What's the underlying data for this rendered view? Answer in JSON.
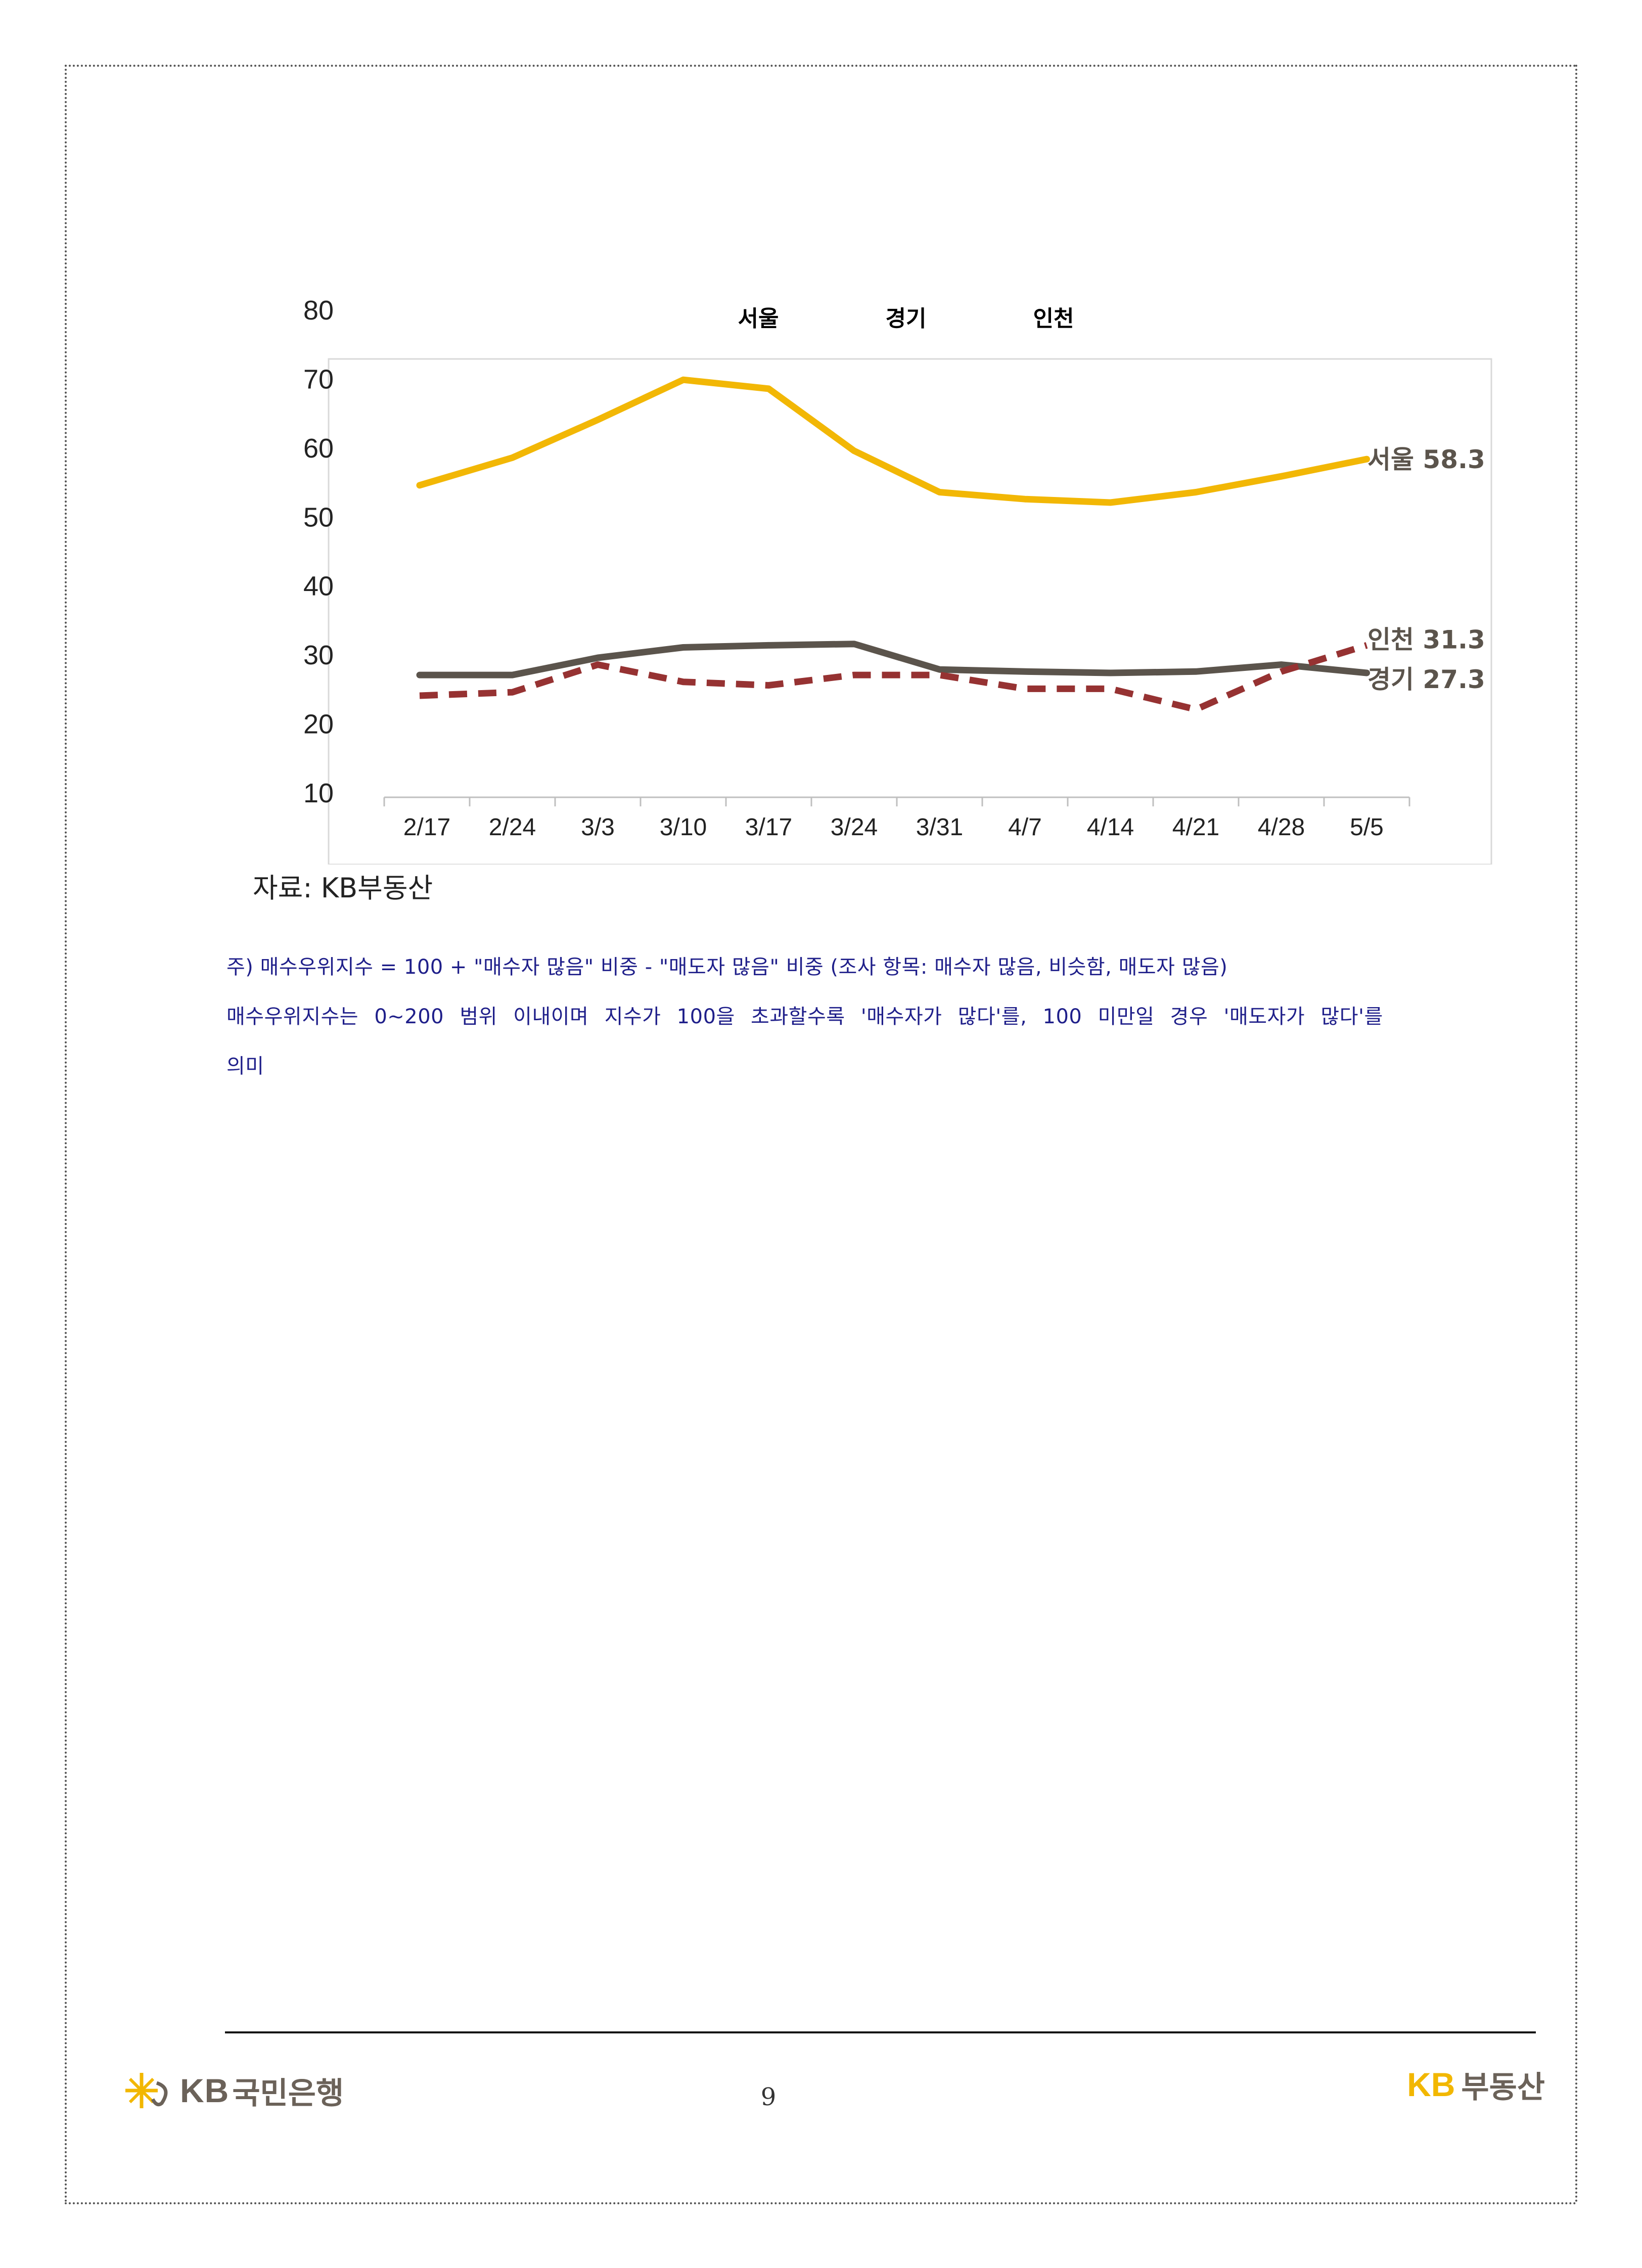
{
  "chart_data": {
    "type": "line",
    "categories": [
      "2/17",
      "2/24",
      "3/3",
      "3/10",
      "3/17",
      "3/24",
      "3/31",
      "4/7",
      "4/14",
      "4/21",
      "4/28",
      "5/5"
    ],
    "ylim": [
      10,
      80
    ],
    "yticks": [
      "80",
      "70",
      "60",
      "50",
      "40",
      "30",
      "20",
      "10"
    ],
    "legend": [
      "서울",
      "경기",
      "인천"
    ],
    "legend_position": "top",
    "series": [
      {
        "name": "서울",
        "color": "#f2b705",
        "style": "solid",
        "values": [
          54.5,
          58.5,
          64,
          69.8,
          68.5,
          59.5,
          53.5,
          52.5,
          52,
          53.5,
          55.8,
          58.3
        ],
        "end_label": "서울 58.3"
      },
      {
        "name": "경기",
        "color": "#5b544c",
        "style": "solid",
        "values": [
          27,
          27,
          29.5,
          31,
          31.3,
          31.5,
          27.8,
          27.5,
          27.3,
          27.5,
          28.5,
          27.3
        ],
        "end_label": "경기 27.3"
      },
      {
        "name": "인천",
        "color": "#963232",
        "style": "dashed",
        "values": [
          24,
          24.5,
          28.5,
          26,
          25.5,
          27,
          27,
          25,
          25,
          22,
          27.5,
          31.3
        ],
        "end_label": "인천 31.3"
      }
    ]
  },
  "source": "자료: KB부동산",
  "notes": {
    "line1": "주) 매수우위지수 = 100 + \"매수자 많음\" 비중 - \"매도자 많음\" 비중   (조사 항목: 매수자 많음, 비슷함, 매도자 많음)",
    "line2": "매수우위지수는 0~200 범위 이내이며 지수가 100을 초과할수록 '매수자가 많다'를, 100 미만일 경우 '매도자가 많다'를",
    "line3": "의미"
  },
  "footer": {
    "left_logo_kb": "KB",
    "left_logo_bank": "국민은행",
    "page_number": "9",
    "right_logo_kb": "KB",
    "right_logo_text": "부동산"
  }
}
